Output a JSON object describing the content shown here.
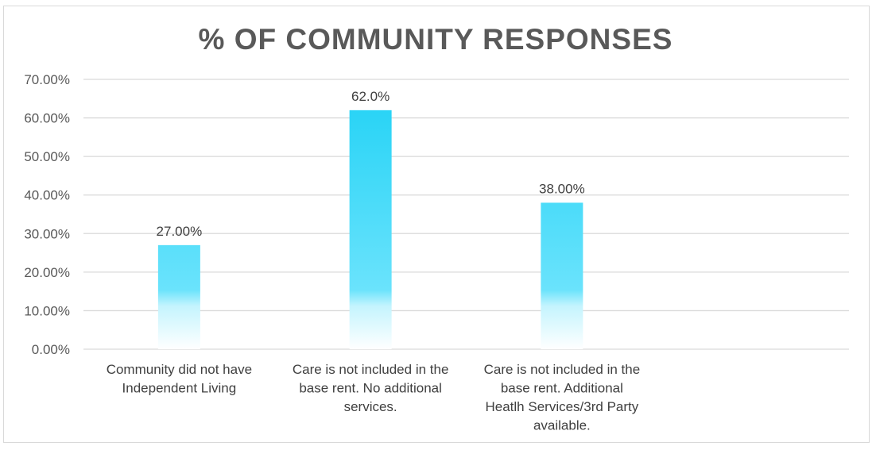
{
  "chart_data": {
    "type": "bar",
    "title": "% OF COMMUNITY RESPONSES",
    "categories": [
      [
        "Community did not have",
        "Independent Living"
      ],
      [
        "Care is not included in the",
        "base rent. No additional",
        "services."
      ],
      [
        "Care is not included in the",
        "base rent. Additional",
        "Heatlh Services/3rd Party",
        "available."
      ],
      [
        ""
      ]
    ],
    "values": [
      27.0,
      62.0,
      38.0,
      null
    ],
    "data_labels": [
      "27.00%",
      "62.0%",
      "38.00%",
      ""
    ],
    "ylim": [
      0,
      70
    ],
    "yticks": [
      0,
      10,
      20,
      30,
      40,
      50,
      60,
      70
    ],
    "ytick_labels": [
      "0.00%",
      "10.00%",
      "20.00%",
      "30.00%",
      "40.00%",
      "50.00%",
      "60.00%",
      "70.00%"
    ],
    "grid": true,
    "legend": "none",
    "colors": {
      "bar_top": "#1fd1f5",
      "bar_mid": "#6ae3fc",
      "bar_bottom": "#ffffff",
      "grid": "#d9d9d9",
      "title": "#595959"
    }
  }
}
